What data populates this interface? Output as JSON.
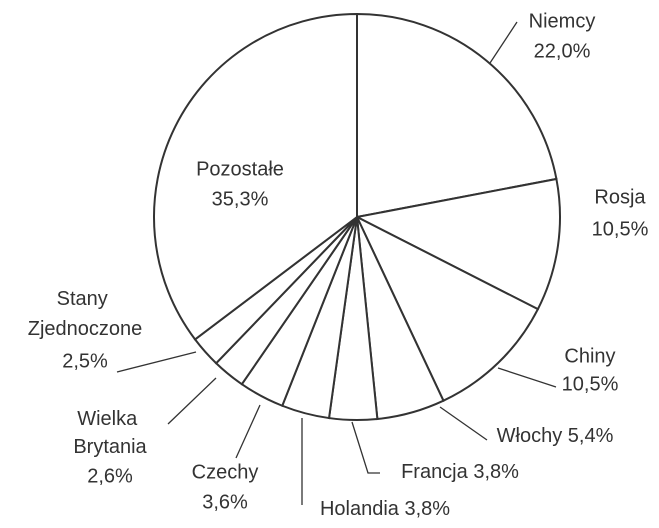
{
  "chart_data": {
    "type": "pie",
    "categories": [
      "Niemcy",
      "Rosja",
      "Chiny",
      "Włochy",
      "Francja",
      "Holandia",
      "Czechy",
      "Wielka Brytania",
      "Stany Zjednoczone",
      "Pozostałe"
    ],
    "values": [
      22.0,
      10.5,
      10.5,
      5.4,
      3.8,
      3.8,
      3.6,
      2.6,
      2.5,
      35.3
    ],
    "value_labels": [
      "22,0%",
      "10,5%",
      "10,5%",
      "5,4%",
      "3,8%",
      "3,8%",
      "3,6%",
      "2,6%",
      "2,5%",
      "35,3%"
    ],
    "color": "#ffffff"
  }
}
